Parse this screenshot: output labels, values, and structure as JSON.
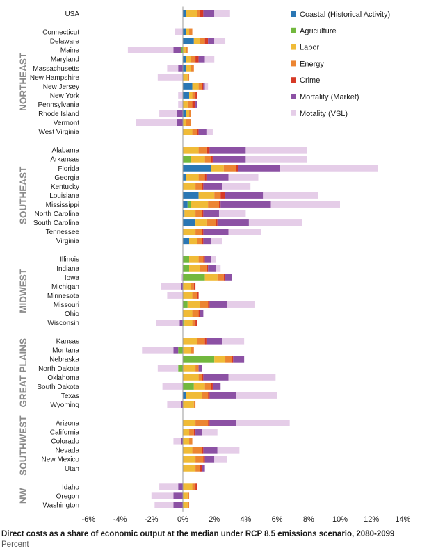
{
  "caption": "Direct costs as a share of economic output at the median under RCP 8.5 emissions scenario, 2080-2099",
  "subcaption": "Percent",
  "chart_data": {
    "type": "bar",
    "orientation": "horizontal",
    "stacked": true,
    "xlim": [
      -6,
      14
    ],
    "x_ticks": [
      "-6%",
      "-4%",
      "-2%",
      "0%",
      "2%",
      "4%",
      "6%",
      "8%",
      "10%",
      "12%",
      "14%"
    ],
    "grid": false,
    "legend_position": "top-right",
    "series": [
      {
        "name": "Coastal (Historical Activity)",
        "color": "#2a77b4"
      },
      {
        "name": "Agriculture",
        "color": "#72b83e"
      },
      {
        "name": "Labor",
        "color": "#f0bb37"
      },
      {
        "name": "Energy",
        "color": "#ec8532"
      },
      {
        "name": "Crime",
        "color": "#d63a26"
      },
      {
        "name": "Mortality (Market)",
        "color": "#8c51a4"
      },
      {
        "name": "Motality (VSL)",
        "color": "#e5cde8"
      }
    ],
    "groups": [
      {
        "name": "",
        "states": [
          "USA"
        ]
      },
      {
        "name": "NORTHEAST",
        "states": [
          "Connecticut",
          "Delaware",
          "Maine",
          "Maryland",
          "Massachusetts",
          "New Hampshire",
          "New Jersey",
          "New York",
          "Pennsylvania",
          "Rhode Island",
          "Vermont",
          "West Virginia"
        ]
      },
      {
        "name": "SOUTHEAST",
        "states": [
          "Alabama",
          "Arkansas",
          "Florida",
          "Georgia",
          "Kentucky",
          "Louisiana",
          "Mississippi",
          "North Carolina",
          "South Carolina",
          "Tennessee",
          "Virginia"
        ]
      },
      {
        "name": "MIDWEST",
        "states": [
          "Illinois",
          "Indiana",
          "Iowa",
          "Michigan",
          "Minnesota",
          "Missouri",
          "Ohio",
          "Wisconsin"
        ]
      },
      {
        "name": "GREAT PLAINS",
        "states": [
          "Kansas",
          "Montana",
          "Nebraska",
          "North Dakota",
          "Oklahoma",
          "South Dakota",
          "Texas",
          "Wyoming"
        ]
      },
      {
        "name": "SOUTHWEST",
        "states": [
          "Arizona",
          "California",
          "Colorado",
          "Nevada",
          "New Mexico",
          "Utah"
        ]
      },
      {
        "name": "NW",
        "states": [
          "Idaho",
          "Oregon",
          "Washington"
        ]
      }
    ],
    "values": {
      "USA": [
        0.2,
        0,
        0.7,
        0.2,
        0.2,
        0.7,
        1.0
      ],
      "Connecticut": [
        0.2,
        0,
        0.2,
        0.2,
        0,
        0,
        -0.5
      ],
      "Delaware": [
        0.7,
        0,
        0.4,
        0.3,
        0.2,
        0.4,
        0.7
      ],
      "Maine": [
        0,
        -0.1,
        0.2,
        0.1,
        0,
        -0.5,
        -2.9
      ],
      "Maryland": [
        0.2,
        0,
        0.3,
        0.3,
        0.2,
        0.4,
        0.6
      ],
      "Massachusetts": [
        0.2,
        0,
        0.3,
        0.2,
        0,
        -0.3,
        -0.7
      ],
      "New Hampshire": [
        0,
        0,
        0.3,
        0.1,
        0,
        0,
        -1.6
      ],
      "New Jersey": [
        0.6,
        0,
        0.4,
        0.2,
        0.1,
        0.1,
        0.2
      ],
      "New York": [
        0.4,
        0,
        0.2,
        0.2,
        0.1,
        0,
        -0.3
      ],
      "Pennsylvania": [
        0,
        0,
        0.3,
        0.3,
        0.2,
        0.1,
        -0.3
      ],
      "Rhode Island": [
        0.2,
        0,
        0.2,
        0.1,
        0,
        -0.4,
        -1.1
      ],
      "Vermont": [
        0,
        0,
        0.2,
        0.3,
        0,
        -0.4,
        -2.6
      ],
      "West Virginia": [
        0,
        0,
        0.6,
        0.3,
        0.1,
        0.5,
        0.4
      ],
      "Alabama": [
        0,
        0,
        1.0,
        0.5,
        0.2,
        2.3,
        3.9
      ],
      "Arkansas": [
        0,
        0.5,
        0.9,
        0.4,
        0.1,
        2.1,
        3.9
      ],
      "Florida": [
        1.8,
        0,
        0.8,
        0.8,
        0.1,
        2.7,
        6.2
      ],
      "Georgia": [
        0.2,
        0,
        0.8,
        0.4,
        0.1,
        1.4,
        1.9
      ],
      "Kentucky": [
        0,
        0,
        0.8,
        0.4,
        0.1,
        1.2,
        1.8
      ],
      "Louisiana": [
        1.0,
        0,
        1.0,
        0.4,
        0.3,
        2.4,
        3.5
      ],
      "Mississippi": [
        0.3,
        0.2,
        1.1,
        0.7,
        0.1,
        3.2,
        4.4
      ],
      "North Carolina": [
        0.1,
        0,
        0.7,
        0.4,
        0.1,
        1.0,
        1.7
      ],
      "South Carolina": [
        0.8,
        0,
        0.7,
        0.6,
        0.1,
        2.0,
        3.4
      ],
      "Tennessee": [
        0,
        0,
        0.8,
        0.4,
        0.1,
        1.6,
        2.1
      ],
      "Virginia": [
        0.4,
        0,
        0.5,
        0.3,
        0.1,
        0.5,
        0.7
      ],
      "Illinois": [
        0,
        0.4,
        0.6,
        0.3,
        0.1,
        0.4,
        0.3
      ],
      "Indiana": [
        0,
        0.4,
        0.7,
        0.4,
        0.1,
        0.5,
        0.3
      ],
      "Iowa": [
        0,
        1.4,
        0.8,
        0.4,
        0.1,
        0.4,
        -0.1
      ],
      "Michigan": [
        0,
        0,
        0.5,
        0.2,
        0.1,
        -0.1,
        -1.3
      ],
      "Minnesota": [
        0,
        0,
        0.6,
        0.3,
        0.1,
        0,
        -1.0
      ],
      "Missouri": [
        0,
        0.3,
        0.8,
        0.5,
        0.1,
        1.1,
        1.8
      ],
      "Ohio": [
        0,
        0,
        0.6,
        0.4,
        0.1,
        0.2,
        0
      ],
      "Wisconsin": [
        0,
        0.1,
        0.5,
        0.2,
        0.1,
        -0.2,
        -1.5
      ],
      "Kansas": [
        0,
        0,
        0.9,
        0.5,
        0.1,
        1.0,
        1.4
      ],
      "Montana": [
        0,
        -0.3,
        0.5,
        0.2,
        0,
        -0.3,
        -2.0
      ],
      "Nebraska": [
        0,
        2.0,
        0.7,
        0.4,
        0.1,
        0.7,
        0
      ],
      "North Dakota": [
        0,
        -0.3,
        0.8,
        0.2,
        0,
        0.2,
        -1.3
      ],
      "Oklahoma": [
        0,
        0,
        1.0,
        0.2,
        0.1,
        1.6,
        3.0
      ],
      "South Dakota": [
        0,
        0.7,
        0.7,
        0.4,
        0.1,
        0.5,
        -1.3
      ],
      "Texas": [
        0.2,
        0,
        1.0,
        0.4,
        0.1,
        1.7,
        2.6
      ],
      "Wyoming": [
        0,
        0,
        0.7,
        0.1,
        0,
        -0.1,
        -0.9
      ],
      "Arizona": [
        0,
        0,
        0.8,
        0.8,
        0.1,
        1.7,
        3.4
      ],
      "California": [
        0,
        0,
        0.4,
        0.3,
        0.1,
        0.4,
        1.0
      ],
      "Colorado": [
        0,
        0,
        0.4,
        0.2,
        0,
        -0.1,
        -0.5
      ],
      "Nevada": [
        0,
        0,
        0.6,
        0.6,
        0.1,
        0.9,
        1.4
      ],
      "New Mexico": [
        0,
        0,
        0.8,
        0.5,
        0.1,
        0.6,
        0.8
      ],
      "Utah": [
        0,
        0,
        0.8,
        0.3,
        0.1,
        0.2,
        0
      ],
      "Idaho": [
        0,
        0,
        0.6,
        0.2,
        0.1,
        -0.3,
        -1.2
      ],
      "Oregon": [
        0,
        0,
        0.3,
        0.1,
        0,
        -0.6,
        -1.4
      ],
      "Washington": [
        0,
        0,
        0.3,
        0.1,
        0,
        -0.6,
        -1.2
      ]
    }
  }
}
